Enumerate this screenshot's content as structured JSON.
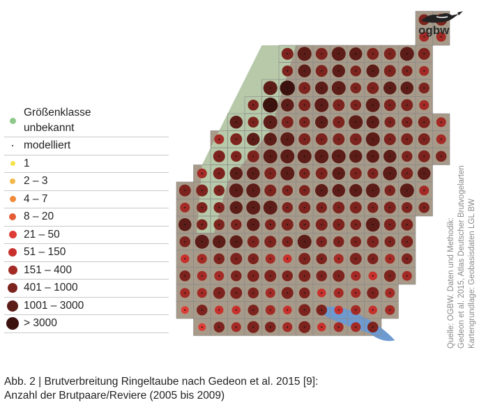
{
  "map": {
    "grid_rows": 19,
    "grid_cols": 16,
    "shape_rows": [
      [
        14,
        16
      ],
      [
        14,
        16
      ],
      [
        6,
        15
      ],
      [
        6,
        15
      ],
      [
        5,
        15
      ],
      [
        4,
        15
      ],
      [
        3,
        16
      ],
      [
        2,
        16
      ],
      [
        2,
        16
      ],
      [
        1,
        15
      ],
      [
        0,
        15
      ],
      [
        0,
        15
      ],
      [
        0,
        14
      ],
      [
        0,
        14
      ],
      [
        0,
        14
      ],
      [
        0,
        14
      ],
      [
        0,
        13
      ],
      [
        0,
        13
      ],
      [
        1,
        12
      ]
    ],
    "colors": {
      "land": "#a79a89",
      "lowland": "#b7c9a9",
      "lake": "#6d9ad0",
      "grid": "#8a8a8a",
      "c1": "#f4e24c",
      "c2": "#f3b84b",
      "c3": "#ef8a38",
      "c4": "#e45b35",
      "c5": "#dd3d36",
      "c6": "#c8302c",
      "c7": "#a32a25",
      "c8": "#7c231e",
      "c9": "#5c1c17",
      "c10": "#3c120f"
    }
  },
  "legend": {
    "items": [
      {
        "label": "Größenklasse\nunbekannt",
        "color": "#8fc88a",
        "size": 9
      },
      {
        "label": "modelliert",
        "color": "#222222",
        "size": 2
      },
      {
        "label": "1",
        "color": "#f4e24c",
        "size": 7
      },
      {
        "label": "2 – 3",
        "color": "#f3b84b",
        "size": 8
      },
      {
        "label": "4 – 7",
        "color": "#ef8a38",
        "size": 9
      },
      {
        "label": "8 – 20",
        "color": "#e45b35",
        "size": 10
      },
      {
        "label": "21 – 50",
        "color": "#dd3d36",
        "size": 11
      },
      {
        "label": "51 – 150",
        "color": "#c8302c",
        "size": 12
      },
      {
        "label": "151 – 400",
        "color": "#a32a25",
        "size": 13
      },
      {
        "label": "401 – 1000",
        "color": "#7c231e",
        "size": 14
      },
      {
        "label": "1001 – 3000",
        "color": "#5c1c17",
        "size": 16
      },
      {
        "label": "> 3000",
        "color": "#3c120f",
        "size": 18
      }
    ]
  },
  "source": {
    "text": "Quelle: OGBW. Daten und Methodik:\nGedeon et al. 2015, Atlas Deutscher Brutvogelarten\nKartengrundlage: Geobasisdaten LGL BW"
  },
  "logo": {
    "text": "ogbw"
  },
  "caption": {
    "line1": "Abb. 2 | Brutverbreitung Ringeltaube nach Gedeon et al. 2015 [9]:",
    "line2": "Anzahl der Brutpaare/Reviere (2005 bis 2009)"
  }
}
